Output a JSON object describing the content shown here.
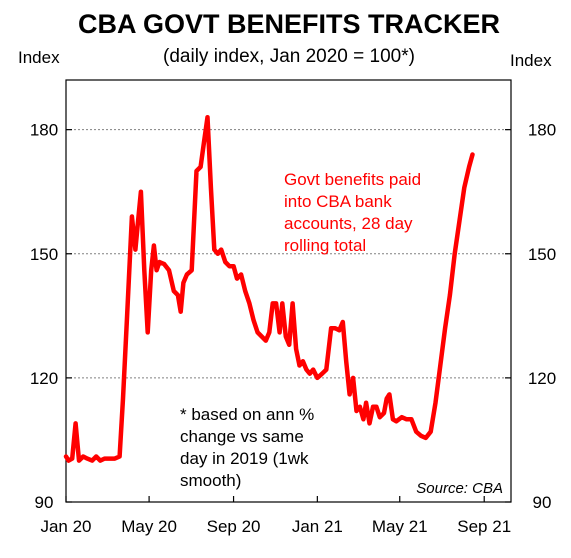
{
  "chart_data": {
    "type": "line",
    "title": "CBA GOVT BENEFITS TRACKER",
    "subtitle": "(daily index, Jan 2020 = 100*)",
    "ylabel_left": "Index",
    "ylabel_right": "Index",
    "ylim": [
      90,
      192
    ],
    "yticks": [
      90,
      120,
      150,
      180
    ],
    "xlim": [
      "2020-01-01",
      "2021-10-10"
    ],
    "xticks": [
      {
        "date": "2020-01-01",
        "label": "Jan 20"
      },
      {
        "date": "2020-05-01",
        "label": "May 20"
      },
      {
        "date": "2020-09-01",
        "label": "Sep 20"
      },
      {
        "date": "2021-01-01",
        "label": "Jan 21"
      },
      {
        "date": "2021-05-01",
        "label": "May 21"
      },
      {
        "date": "2021-09-01",
        "label": "Sep 21"
      }
    ],
    "grid": "horizontal-dashed",
    "series": [
      {
        "color": "#ff0000",
        "points": [
          [
            "2020-01-01",
            101
          ],
          [
            "2020-01-05",
            100
          ],
          [
            "2020-01-10",
            100.5
          ],
          [
            "2020-01-15",
            109
          ],
          [
            "2020-01-20",
            100
          ],
          [
            "2020-01-26",
            101
          ],
          [
            "2020-02-01",
            100.5
          ],
          [
            "2020-02-08",
            100
          ],
          [
            "2020-02-14",
            101
          ],
          [
            "2020-02-20",
            100
          ],
          [
            "2020-02-26",
            100.5
          ],
          [
            "2020-03-05",
            100.5
          ],
          [
            "2020-03-12",
            100.5
          ],
          [
            "2020-03-19",
            101
          ],
          [
            "2020-03-24",
            115
          ],
          [
            "2020-03-30",
            135
          ],
          [
            "2020-04-06",
            159
          ],
          [
            "2020-04-11",
            151
          ],
          [
            "2020-04-15",
            158
          ],
          [
            "2020-04-19",
            165
          ],
          [
            "2020-04-24",
            146
          ],
          [
            "2020-04-29",
            131
          ],
          [
            "2020-05-04",
            146
          ],
          [
            "2020-05-08",
            152
          ],
          [
            "2020-05-12",
            146
          ],
          [
            "2020-05-16",
            148
          ],
          [
            "2020-05-23",
            147.5
          ],
          [
            "2020-05-30",
            146
          ],
          [
            "2020-06-06",
            141
          ],
          [
            "2020-06-12",
            140
          ],
          [
            "2020-06-16",
            136
          ],
          [
            "2020-06-20",
            143
          ],
          [
            "2020-06-25",
            145
          ],
          [
            "2020-07-02",
            146
          ],
          [
            "2020-07-09",
            170
          ],
          [
            "2020-07-15",
            171
          ],
          [
            "2020-07-20",
            177
          ],
          [
            "2020-07-25",
            183
          ],
          [
            "2020-07-30",
            166
          ],
          [
            "2020-08-04",
            151
          ],
          [
            "2020-08-09",
            150
          ],
          [
            "2020-08-14",
            151
          ],
          [
            "2020-08-20",
            148
          ],
          [
            "2020-08-26",
            147
          ],
          [
            "2020-09-01",
            147
          ],
          [
            "2020-09-06",
            144
          ],
          [
            "2020-09-12",
            145
          ],
          [
            "2020-09-18",
            141
          ],
          [
            "2020-09-24",
            138
          ],
          [
            "2020-09-30",
            134
          ],
          [
            "2020-10-06",
            131
          ],
          [
            "2020-10-12",
            130
          ],
          [
            "2020-10-18",
            129
          ],
          [
            "2020-10-23",
            131
          ],
          [
            "2020-10-28",
            138
          ],
          [
            "2020-11-02",
            138
          ],
          [
            "2020-11-07",
            131
          ],
          [
            "2020-11-11",
            138
          ],
          [
            "2020-11-16",
            130
          ],
          [
            "2020-11-21",
            128
          ],
          [
            "2020-11-26",
            138
          ],
          [
            "2020-12-01",
            127
          ],
          [
            "2020-12-06",
            123
          ],
          [
            "2020-12-11",
            124
          ],
          [
            "2020-12-16",
            122
          ],
          [
            "2020-12-21",
            121
          ],
          [
            "2020-12-26",
            122
          ],
          [
            "2021-01-01",
            120
          ],
          [
            "2021-01-08",
            121
          ],
          [
            "2021-01-14",
            122
          ],
          [
            "2021-01-21",
            132
          ],
          [
            "2021-01-27",
            132
          ],
          [
            "2021-02-02",
            131.5
          ],
          [
            "2021-02-07",
            133.5
          ],
          [
            "2021-02-12",
            124
          ],
          [
            "2021-02-17",
            116
          ],
          [
            "2021-02-22",
            120
          ],
          [
            "2021-02-27",
            112
          ],
          [
            "2021-03-04",
            113
          ],
          [
            "2021-03-09",
            110
          ],
          [
            "2021-03-13",
            114
          ],
          [
            "2021-03-18",
            109
          ],
          [
            "2021-03-23",
            113
          ],
          [
            "2021-03-28",
            113
          ],
          [
            "2021-04-02",
            110.5
          ],
          [
            "2021-04-08",
            111.5
          ],
          [
            "2021-04-12",
            115
          ],
          [
            "2021-04-16",
            116
          ],
          [
            "2021-04-21",
            110
          ],
          [
            "2021-04-26",
            109.5
          ],
          [
            "2021-05-04",
            110.5
          ],
          [
            "2021-05-11",
            110
          ],
          [
            "2021-05-18",
            110
          ],
          [
            "2021-05-25",
            107
          ],
          [
            "2021-06-01",
            106
          ],
          [
            "2021-06-08",
            105.5
          ],
          [
            "2021-06-15",
            107
          ],
          [
            "2021-06-22",
            114
          ],
          [
            "2021-06-29",
            123
          ],
          [
            "2021-07-06",
            132
          ],
          [
            "2021-07-13",
            140
          ],
          [
            "2021-07-20",
            150
          ],
          [
            "2021-07-27",
            158
          ],
          [
            "2021-08-03",
            166
          ],
          [
            "2021-08-10",
            171
          ],
          [
            "2021-08-15",
            174
          ]
        ]
      }
    ],
    "annotations": [
      {
        "lines": [
          "Govt benefits paid",
          "into CBA bank",
          "accounts, 28 day",
          "rolling total"
        ],
        "color": "#ff0000"
      },
      {
        "lines": [
          "* based on ann %",
          "change vs same",
          "day in 2019 (1wk",
          "smooth)"
        ],
        "color": "#000000"
      }
    ],
    "source": "Source: CBA"
  }
}
